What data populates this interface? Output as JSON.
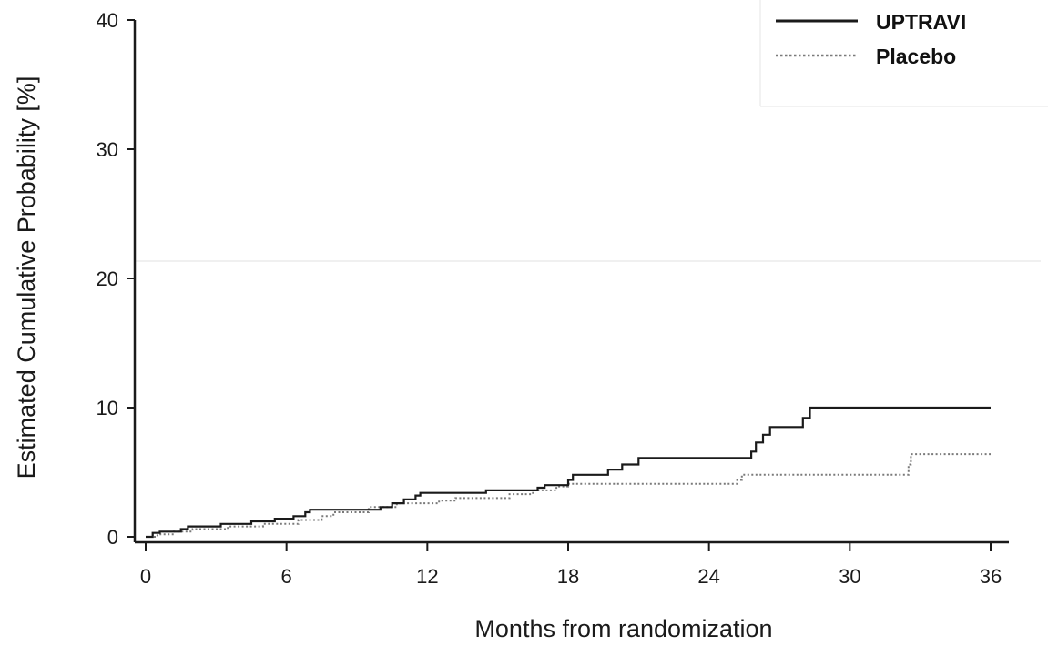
{
  "chart_data": {
    "type": "line",
    "subtype": "step (Kaplan-Meier cumulative incidence)",
    "title": "",
    "xlabel": "Months from randomization",
    "ylabel": "Estimated Cumulative Probability [%]",
    "xlim": [
      0,
      36
    ],
    "ylim": [
      0,
      40
    ],
    "x_ticks": [
      0,
      6,
      12,
      18,
      24,
      30,
      36
    ],
    "y_ticks": [
      0,
      10,
      20,
      30,
      40
    ],
    "grid": false,
    "legend_position": "top-right",
    "series": [
      {
        "name": "UPTRAVI",
        "style": "solid",
        "color": "#1a1a1a",
        "points": [
          [
            0,
            0
          ],
          [
            0.3,
            0.3
          ],
          [
            0.6,
            0.4
          ],
          [
            1.5,
            0.6
          ],
          [
            1.8,
            0.8
          ],
          [
            3.2,
            1.0
          ],
          [
            4.5,
            1.2
          ],
          [
            5.5,
            1.4
          ],
          [
            6.3,
            1.6
          ],
          [
            6.8,
            1.9
          ],
          [
            7.0,
            2.1
          ],
          [
            10.0,
            2.3
          ],
          [
            10.5,
            2.6
          ],
          [
            11.0,
            2.9
          ],
          [
            11.5,
            3.2
          ],
          [
            11.7,
            3.4
          ],
          [
            14.5,
            3.6
          ],
          [
            16.7,
            3.8
          ],
          [
            17.0,
            4.0
          ],
          [
            18.0,
            4.4
          ],
          [
            18.2,
            4.8
          ],
          [
            19.7,
            5.2
          ],
          [
            20.3,
            5.6
          ],
          [
            21.0,
            6.1
          ],
          [
            25.8,
            6.6
          ],
          [
            26.0,
            7.3
          ],
          [
            26.3,
            7.9
          ],
          [
            26.6,
            8.5
          ],
          [
            28.0,
            9.2
          ],
          [
            28.3,
            10.0
          ],
          [
            36.0,
            10.0
          ]
        ]
      },
      {
        "name": "Placebo",
        "style": "dotted",
        "color": "#7a7a7a",
        "points": [
          [
            0,
            0
          ],
          [
            0.5,
            0.2
          ],
          [
            1.2,
            0.4
          ],
          [
            2.0,
            0.6
          ],
          [
            3.5,
            0.8
          ],
          [
            5.0,
            1.0
          ],
          [
            6.5,
            1.3
          ],
          [
            7.5,
            1.6
          ],
          [
            8.0,
            1.9
          ],
          [
            9.5,
            2.3
          ],
          [
            10.7,
            2.6
          ],
          [
            12.5,
            2.8
          ],
          [
            13.2,
            3.0
          ],
          [
            15.5,
            3.3
          ],
          [
            16.5,
            3.6
          ],
          [
            17.5,
            3.9
          ],
          [
            18.0,
            4.1
          ],
          [
            25.2,
            4.4
          ],
          [
            25.4,
            4.8
          ],
          [
            32.5,
            5.6
          ],
          [
            32.6,
            6.4
          ],
          [
            36.0,
            6.4
          ]
        ]
      }
    ]
  }
}
